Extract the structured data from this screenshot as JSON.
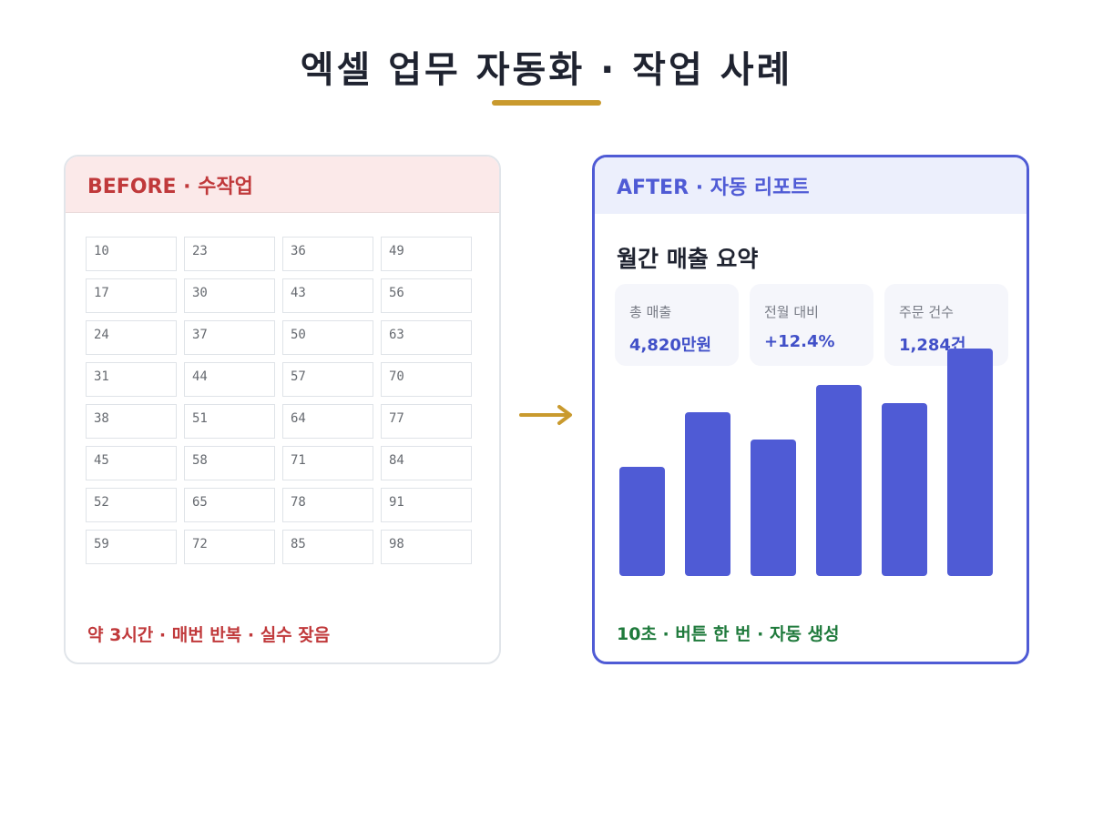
{
  "title": "엑셀 업무 자동화 · 작업 사례",
  "colors": {
    "accent_gold": "#c99a2e",
    "before_red": "#c0393b",
    "after_blue": "#4f5bd5",
    "footer_green": "#1f7a3c"
  },
  "before": {
    "header": "BEFORE · 수작업",
    "grid": [
      [
        "10",
        "23",
        "36",
        "49"
      ],
      [
        "17",
        "30",
        "43",
        "56"
      ],
      [
        "24",
        "37",
        "50",
        "63"
      ],
      [
        "31",
        "44",
        "57",
        "70"
      ],
      [
        "38",
        "51",
        "64",
        "77"
      ],
      [
        "45",
        "58",
        "71",
        "84"
      ],
      [
        "52",
        "65",
        "78",
        "91"
      ],
      [
        "59",
        "72",
        "85",
        "98"
      ]
    ],
    "footer": "약 3시간 · 매번 반복 · 실수 잦음"
  },
  "arrow_icon": "right-arrow",
  "after": {
    "header": "AFTER · 자동 리포트",
    "summary_title": "월간 매출 요약",
    "kpis": [
      {
        "label": "총 매출",
        "value": "4,820만원"
      },
      {
        "label": "전월 대비",
        "value": "+12.4%"
      },
      {
        "label": "주문 건수",
        "value": "1,284건"
      }
    ],
    "footer": "10초 · 버튼 한 번 · 자동 생성"
  },
  "chart_data": {
    "type": "bar",
    "categories": [
      "",
      "",
      "",
      "",
      "",
      ""
    ],
    "values": [
      120,
      180,
      150,
      210,
      190,
      250
    ],
    "ylim": [
      0,
      250
    ],
    "grid": false,
    "legend": "none"
  }
}
